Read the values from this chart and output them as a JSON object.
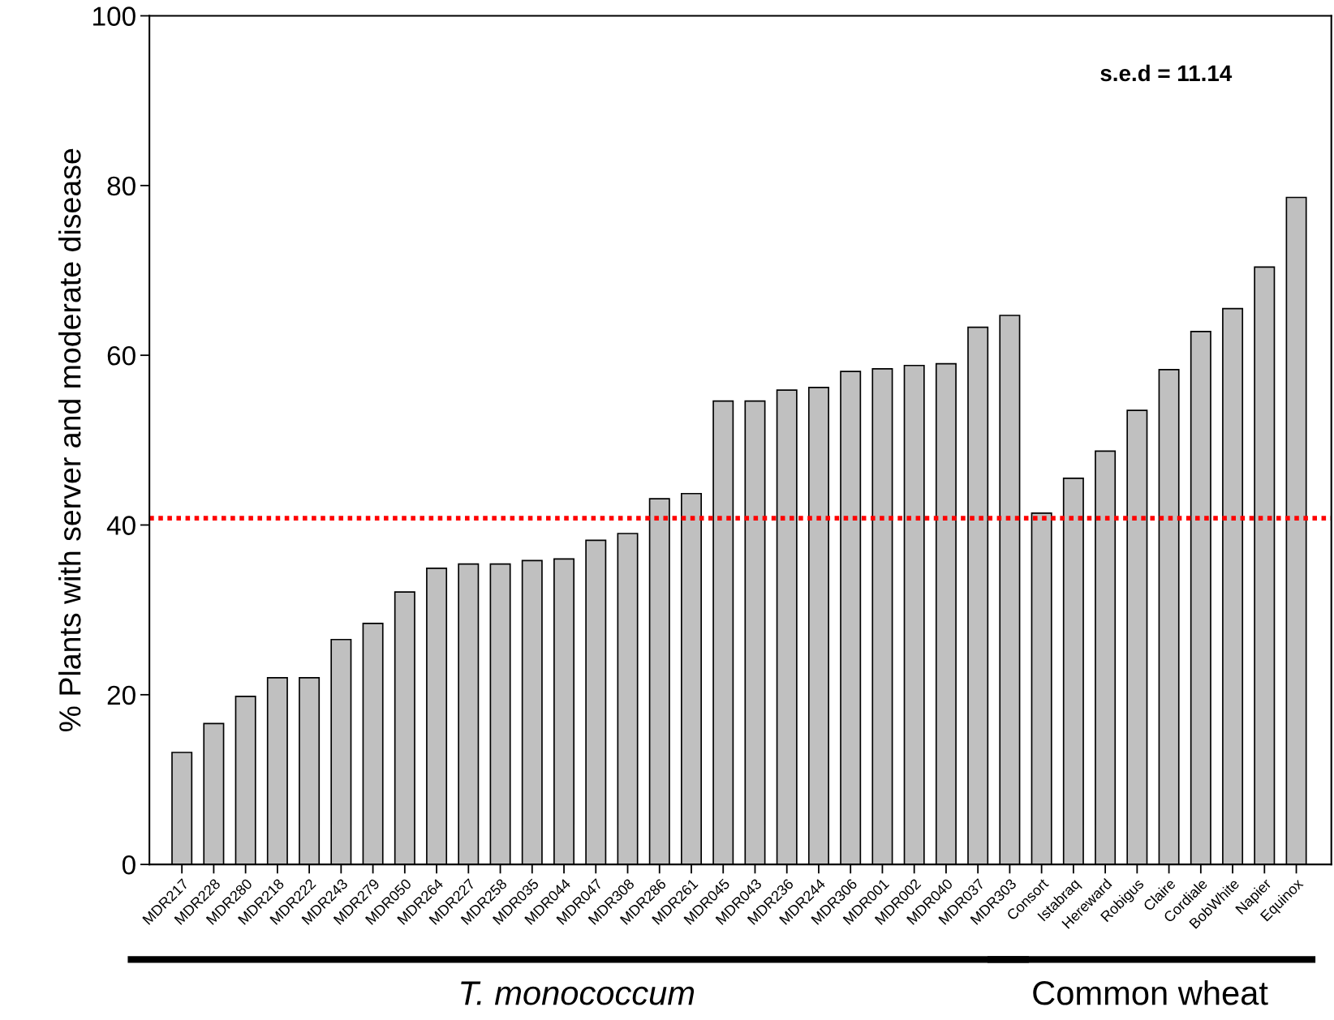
{
  "chart_data": {
    "type": "bar",
    "ylabel": "% Plants with server and moderate disease",
    "categories": [
      "MDR217",
      "MDR228",
      "MDR280",
      "MDR218",
      "MDR222",
      "MDR243",
      "MDR279",
      "MDR050",
      "MDR264",
      "MDR227",
      "MDR258",
      "MDR035",
      "MDR044",
      "MDR047",
      "MDR308",
      "MDR286",
      "MDR261",
      "MDR045",
      "MDR043",
      "MDR236",
      "MDR244",
      "MDR306",
      "MDR001",
      "MDR002",
      "MDR040",
      "MDR037",
      "MDR303",
      "Consort",
      "Istabraq",
      "Hereward",
      "Robigus",
      "Claire",
      "Cordiale",
      "BobWhite",
      "Napier",
      "Equinox"
    ],
    "values": [
      13.2,
      16.6,
      19.8,
      22.0,
      22.0,
      26.5,
      28.4,
      32.1,
      34.9,
      35.4,
      35.4,
      35.8,
      36.0,
      38.2,
      39.0,
      43.1,
      43.7,
      54.6,
      54.6,
      55.9,
      56.2,
      58.1,
      58.4,
      58.8,
      59.0,
      63.3,
      64.7,
      41.4,
      45.5,
      48.7,
      53.5,
      58.3,
      62.8,
      65.5,
      70.4,
      78.6
    ],
    "color": "#c0c0c0",
    "ylim": [
      0,
      100
    ],
    "yticks": [
      0,
      20,
      40,
      60,
      80,
      100
    ],
    "grid": false,
    "legend": false,
    "ref_lines": [
      {
        "axis": "y",
        "value": 40.8,
        "color": "#ff0000",
        "line_style": "dotted"
      }
    ],
    "annotations": [
      "s.e.d = 11.14",
      "T. monococcum",
      "Common wheat"
    ]
  }
}
